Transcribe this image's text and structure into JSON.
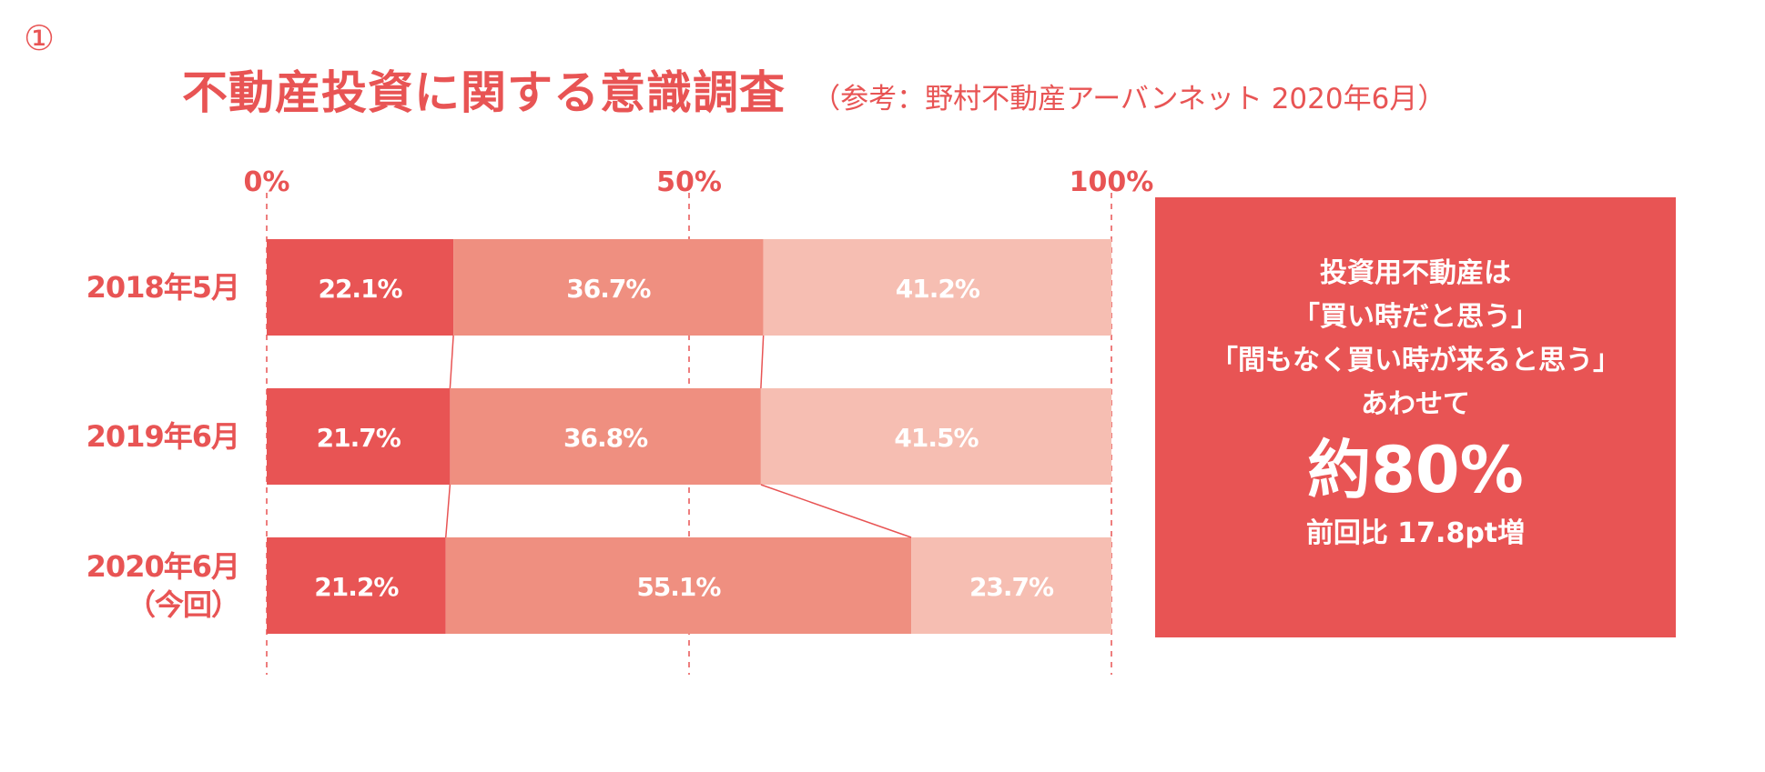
{
  "header": {
    "number_mark": "①",
    "title": "不動産投資に関する意識調査",
    "subtitle": "（参考：野村不動産アーバンネット 2020年6月）"
  },
  "chart_data": {
    "type": "bar",
    "orientation": "horizontal",
    "stacked": true,
    "normalized_100": true,
    "title": "",
    "categories": [
      "2018年5月",
      "2019年6月",
      "2020年6月（今回）"
    ],
    "category_lines": [
      [
        "2018年5月"
      ],
      [
        "2019年6月"
      ],
      [
        "2020年6月",
        "（今回）"
      ]
    ],
    "series": [
      {
        "values": [
          22.1,
          21.7,
          21.2
        ],
        "labels": [
          "22.1%",
          "21.7%",
          "21.2%"
        ],
        "color": "#e85454"
      },
      {
        "values": [
          36.7,
          36.8,
          55.1
        ],
        "labels": [
          "36.7%",
          "36.8%",
          "55.1%"
        ],
        "color": "#ef8f80"
      },
      {
        "values": [
          41.2,
          41.5,
          23.7
        ],
        "labels": [
          "41.2%",
          "41.5%",
          "23.7%"
        ],
        "color": "#f6beb2"
      }
    ],
    "x_ticks": [
      0,
      50,
      100
    ],
    "x_tick_labels": [
      "0%",
      "50%",
      "100%"
    ],
    "xlim": [
      0,
      100
    ],
    "grid": "dashed vertical at ticks",
    "connector_lines": true,
    "legend": "none"
  },
  "summary": {
    "lines": [
      "投資用不動産は",
      "「買い時だと思う」",
      "「間もなく買い時が来ると思う」",
      "あわせて"
    ],
    "big_value": "約80%",
    "note": "前回比 17.8pt増"
  },
  "colors": {
    "accent": "#e85454",
    "series1": "#e85454",
    "series2": "#ef8f80",
    "series3": "#f6beb2",
    "text_on_bar": "#ffffff"
  }
}
